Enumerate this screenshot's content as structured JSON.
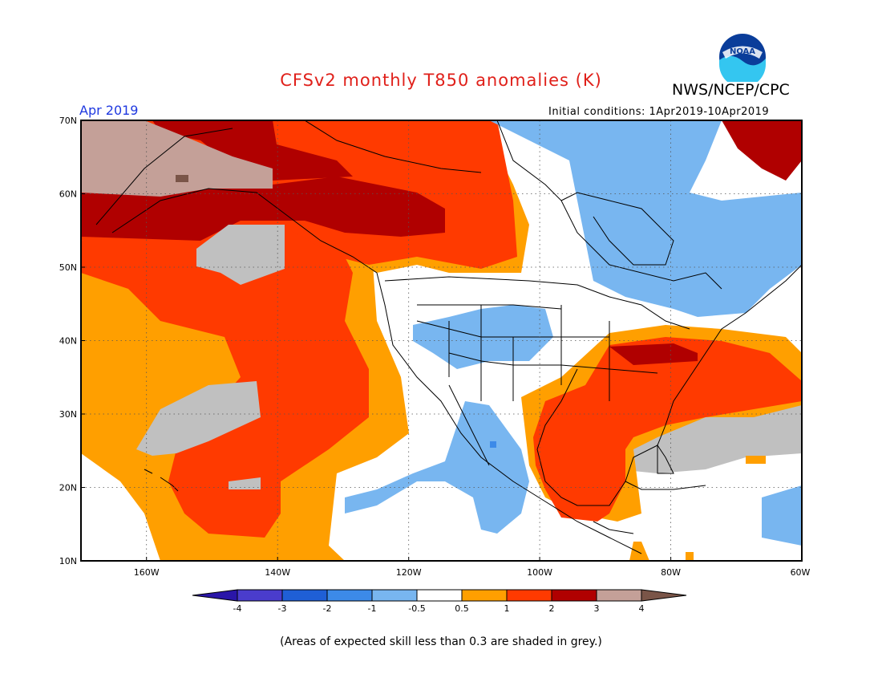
{
  "title": "CFSv2 monthly T850 anomalies (K)",
  "agency": "NWS/NCEP/CPC",
  "logo_text": "NOAA",
  "period": "Apr 2019",
  "initial_conditions": "Initial conditions: 1Apr2019-10Apr2019",
  "note": "(Areas of expected skill less than 0.3 are shaded in grey.)",
  "map": {
    "lat_labels": [
      "70N",
      "60N",
      "50N",
      "40N",
      "30N",
      "20N",
      "10N"
    ],
    "lon_labels": [
      "160W",
      "140W",
      "120W",
      "100W",
      "80W",
      "60W"
    ],
    "lon_range": [
      "170W",
      "60W"
    ],
    "lat_range": [
      "10N",
      "70N"
    ]
  },
  "colorbar": {
    "tick_labels": [
      "-4",
      "-3",
      "-2",
      "-1",
      "-0.5",
      "0.5",
      "1",
      "2",
      "3",
      "4"
    ],
    "colors": [
      "#2a16a8",
      "#4a3ccc",
      "#1f5fd6",
      "#3c8ae8",
      "#78b6f0",
      "#ffffff",
      "#ff9f00",
      "#ff3a00",
      "#b00000",
      "#c4a098",
      "#7a5548"
    ]
  },
  "colors": {
    "skill_grey": "#c0c0c0",
    "title_red": "#e0201a",
    "period_blue": "#1f39e0"
  }
}
